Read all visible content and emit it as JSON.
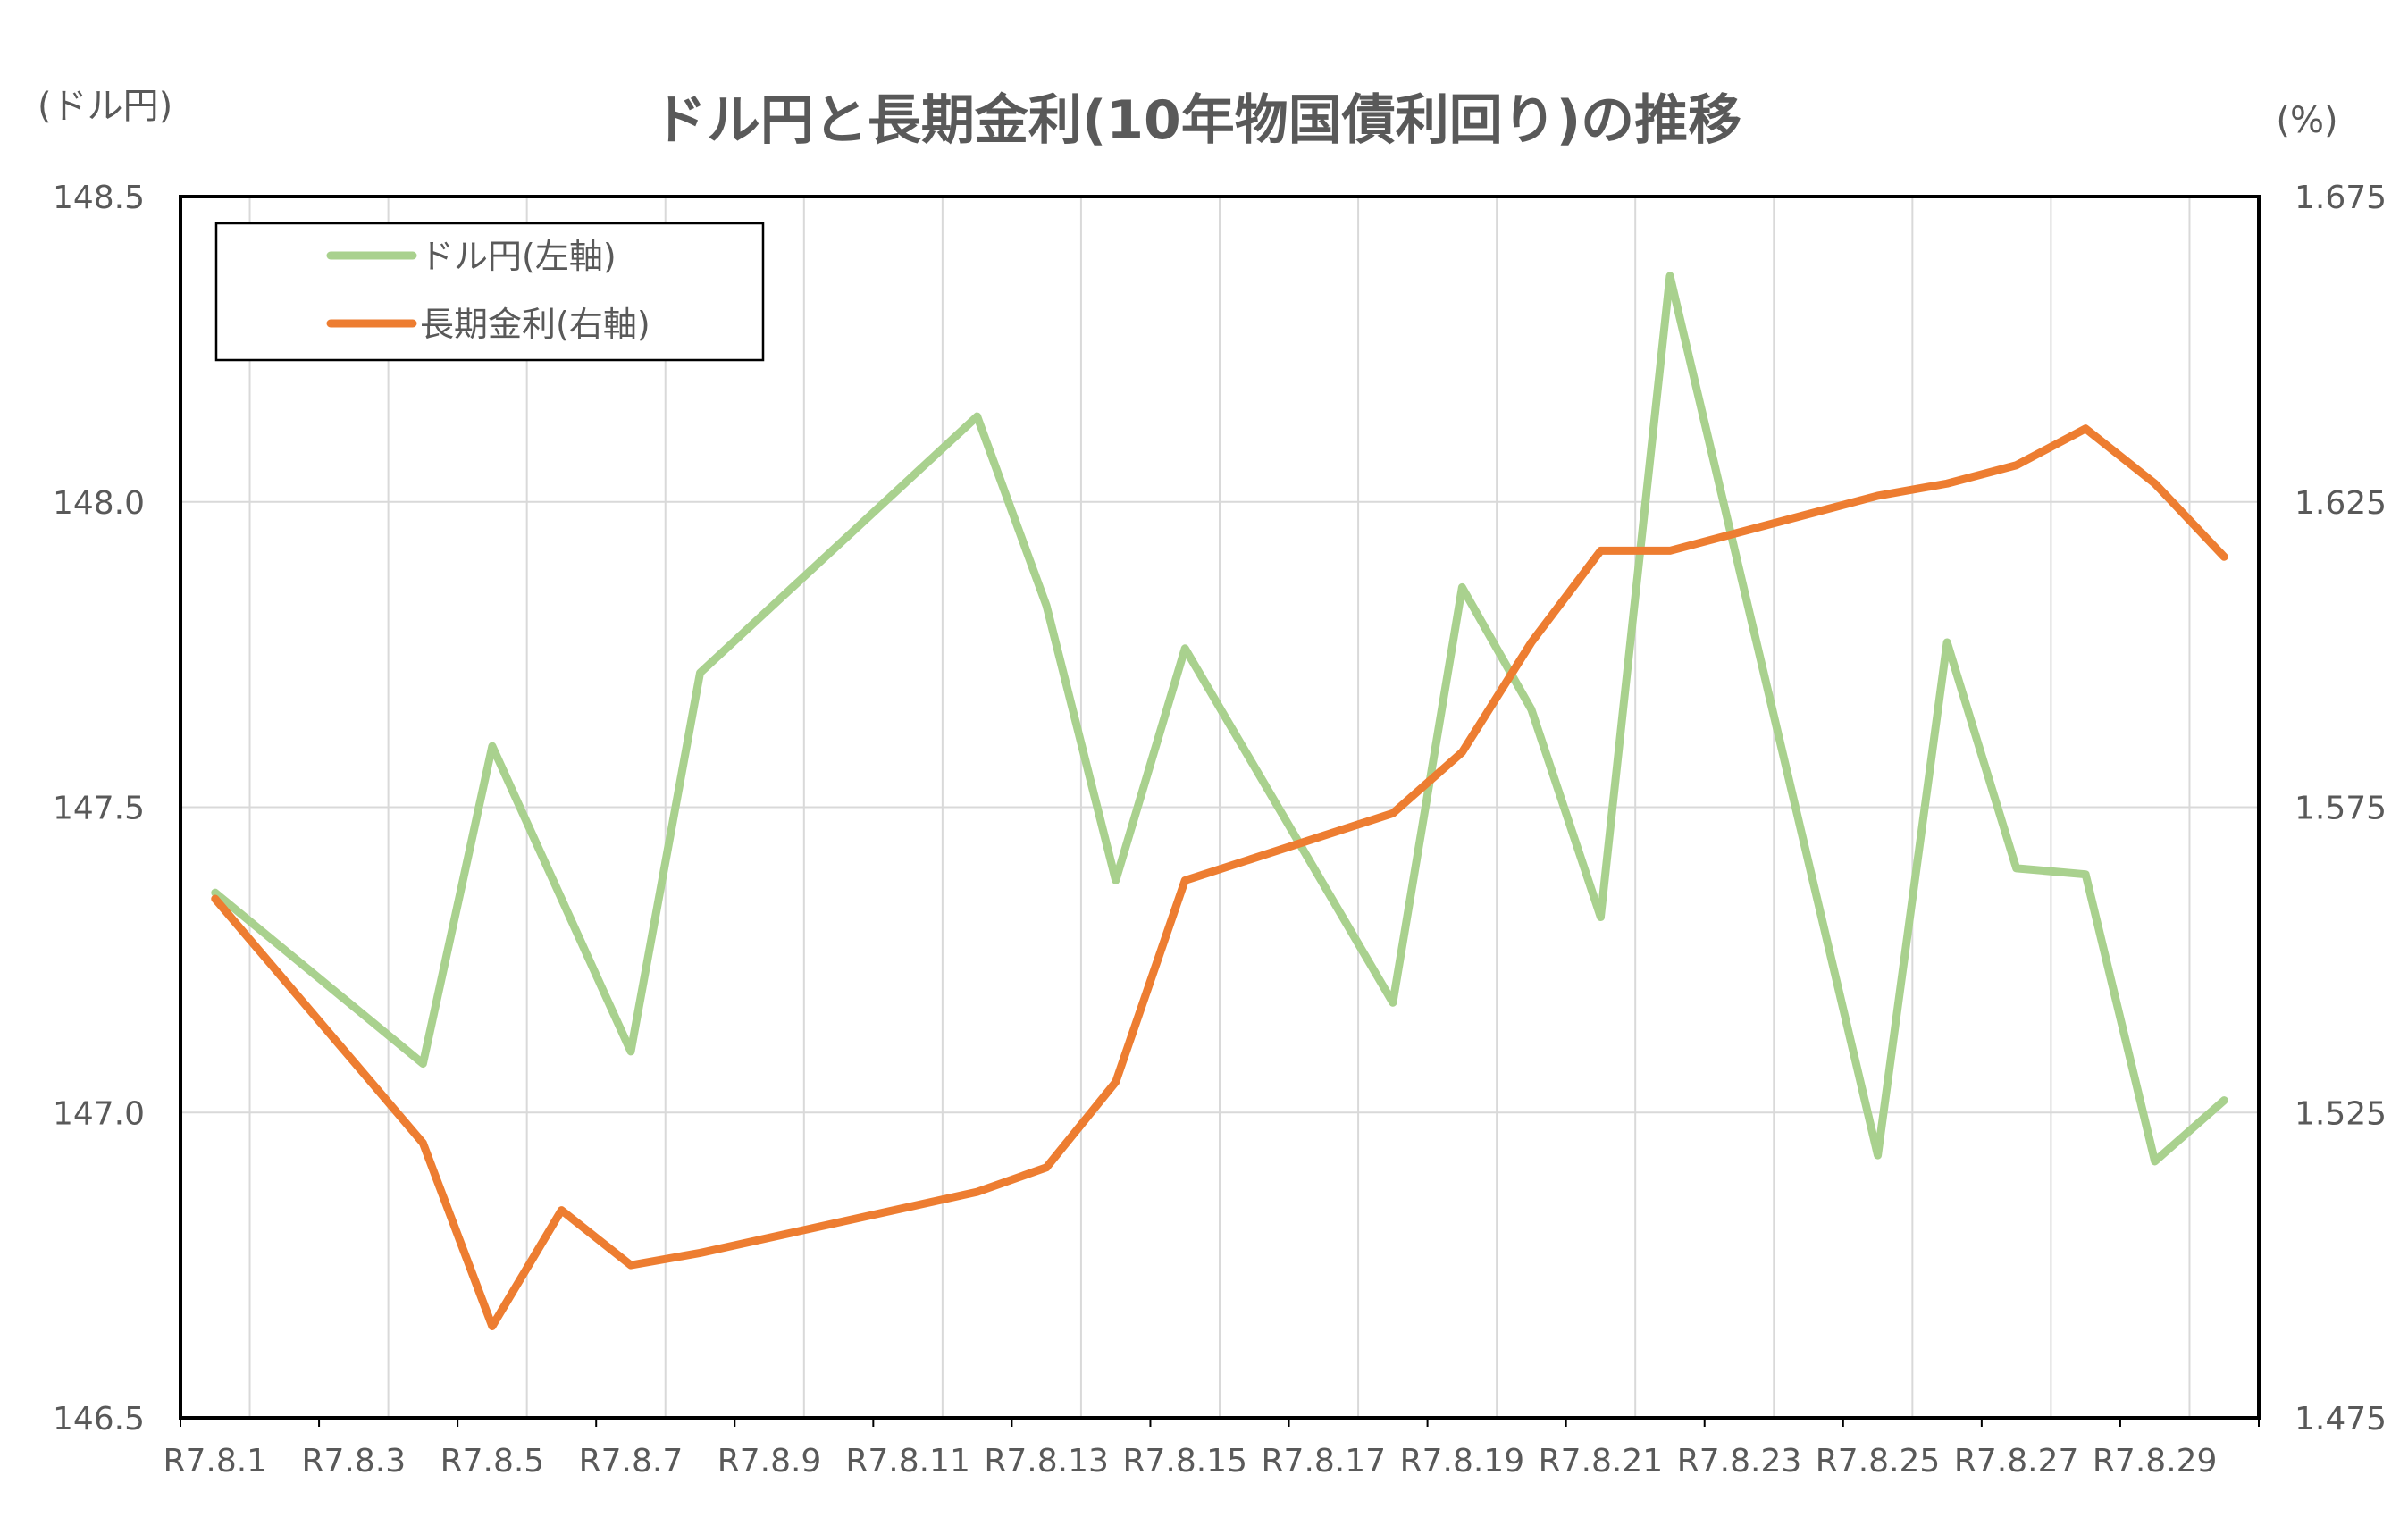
{
  "chart_data": {
    "type": "line",
    "title": "ドル円と長期金利(10年物国債利回り)の推移",
    "left_unit": "(ドル円)",
    "right_unit": "(%)",
    "x_ticks": [
      "R7.8.1",
      "R7.8.3",
      "R7.8.5",
      "R7.8.7",
      "R7.8.9",
      "R7.8.11",
      "R7.8.13",
      "R7.8.15",
      "R7.8.17",
      "R7.8.19",
      "R7.8.21",
      "R7.8.23",
      "R7.8.25",
      "R7.8.27",
      "R7.8.29"
    ],
    "y_left": {
      "min": 146.5,
      "max": 148.5,
      "ticks": [
        "146.5",
        "147.0",
        "147.5",
        "148.0",
        "148.5"
      ]
    },
    "y_right": {
      "min": 1.475,
      "max": 1.675,
      "ticks": [
        "1.475",
        "1.525",
        "1.575",
        "1.625",
        "1.675"
      ]
    },
    "grid": true,
    "legend_position": "top-left",
    "series": [
      {
        "name": "ドル円(左軸)",
        "axis": "left",
        "color": "#a9d18e",
        "points": [
          {
            "x": "R7.8.1",
            "y": 147.36
          },
          {
            "x": "R7.8.4",
            "y": 147.08
          },
          {
            "x": "R7.8.5",
            "y": 147.6
          },
          {
            "x": "R7.8.6",
            "y": 147.35
          },
          {
            "x": "R7.8.7",
            "y": 147.1
          },
          {
            "x": "R7.8.8",
            "y": 147.72
          },
          {
            "x": "R7.8.12",
            "y": 148.14
          },
          {
            "x": "R7.8.13",
            "y": 147.83
          },
          {
            "x": "R7.8.14",
            "y": 147.38
          },
          {
            "x": "R7.8.15",
            "y": 147.76
          },
          {
            "x": "R7.8.18",
            "y": 147.18
          },
          {
            "x": "R7.8.19",
            "y": 147.86
          },
          {
            "x": "R7.8.20",
            "y": 147.66
          },
          {
            "x": "R7.8.21",
            "y": 147.32
          },
          {
            "x": "R7.8.22",
            "y": 148.37
          },
          {
            "x": "R7.8.25",
            "y": 146.93
          },
          {
            "x": "R7.8.26",
            "y": 147.77
          },
          {
            "x": "R7.8.27",
            "y": 147.4
          },
          {
            "x": "R7.8.28",
            "y": 147.39
          },
          {
            "x": "R7.8.29",
            "y": 146.92
          },
          {
            "x": "R7.8.30",
            "y": 147.02
          }
        ]
      },
      {
        "name": "長期金利(右軸)",
        "axis": "right",
        "color": "#ed7d31",
        "points": [
          {
            "x": "R7.8.1",
            "y": 1.56
          },
          {
            "x": "R7.8.4",
            "y": 1.52
          },
          {
            "x": "R7.8.5",
            "y": 1.49
          },
          {
            "x": "R7.8.6",
            "y": 1.509
          },
          {
            "x": "R7.8.7",
            "y": 1.5
          },
          {
            "x": "R7.8.8",
            "y": 1.502
          },
          {
            "x": "R7.8.12",
            "y": 1.512
          },
          {
            "x": "R7.8.13",
            "y": 1.516
          },
          {
            "x": "R7.8.14",
            "y": 1.53
          },
          {
            "x": "R7.8.15",
            "y": 1.563
          },
          {
            "x": "R7.8.18",
            "y": 1.574
          },
          {
            "x": "R7.8.19",
            "y": 1.584
          },
          {
            "x": "R7.8.20",
            "y": 1.602
          },
          {
            "x": "R7.8.21",
            "y": 1.617
          },
          {
            "x": "R7.8.22",
            "y": 1.617
          },
          {
            "x": "R7.8.25",
            "y": 1.626
          },
          {
            "x": "R7.8.26",
            "y": 1.628
          },
          {
            "x": "R7.8.27",
            "y": 1.631
          },
          {
            "x": "R7.8.28",
            "y": 1.637
          },
          {
            "x": "R7.8.29",
            "y": 1.628
          },
          {
            "x": "R7.8.30",
            "y": 1.616
          }
        ]
      }
    ]
  }
}
